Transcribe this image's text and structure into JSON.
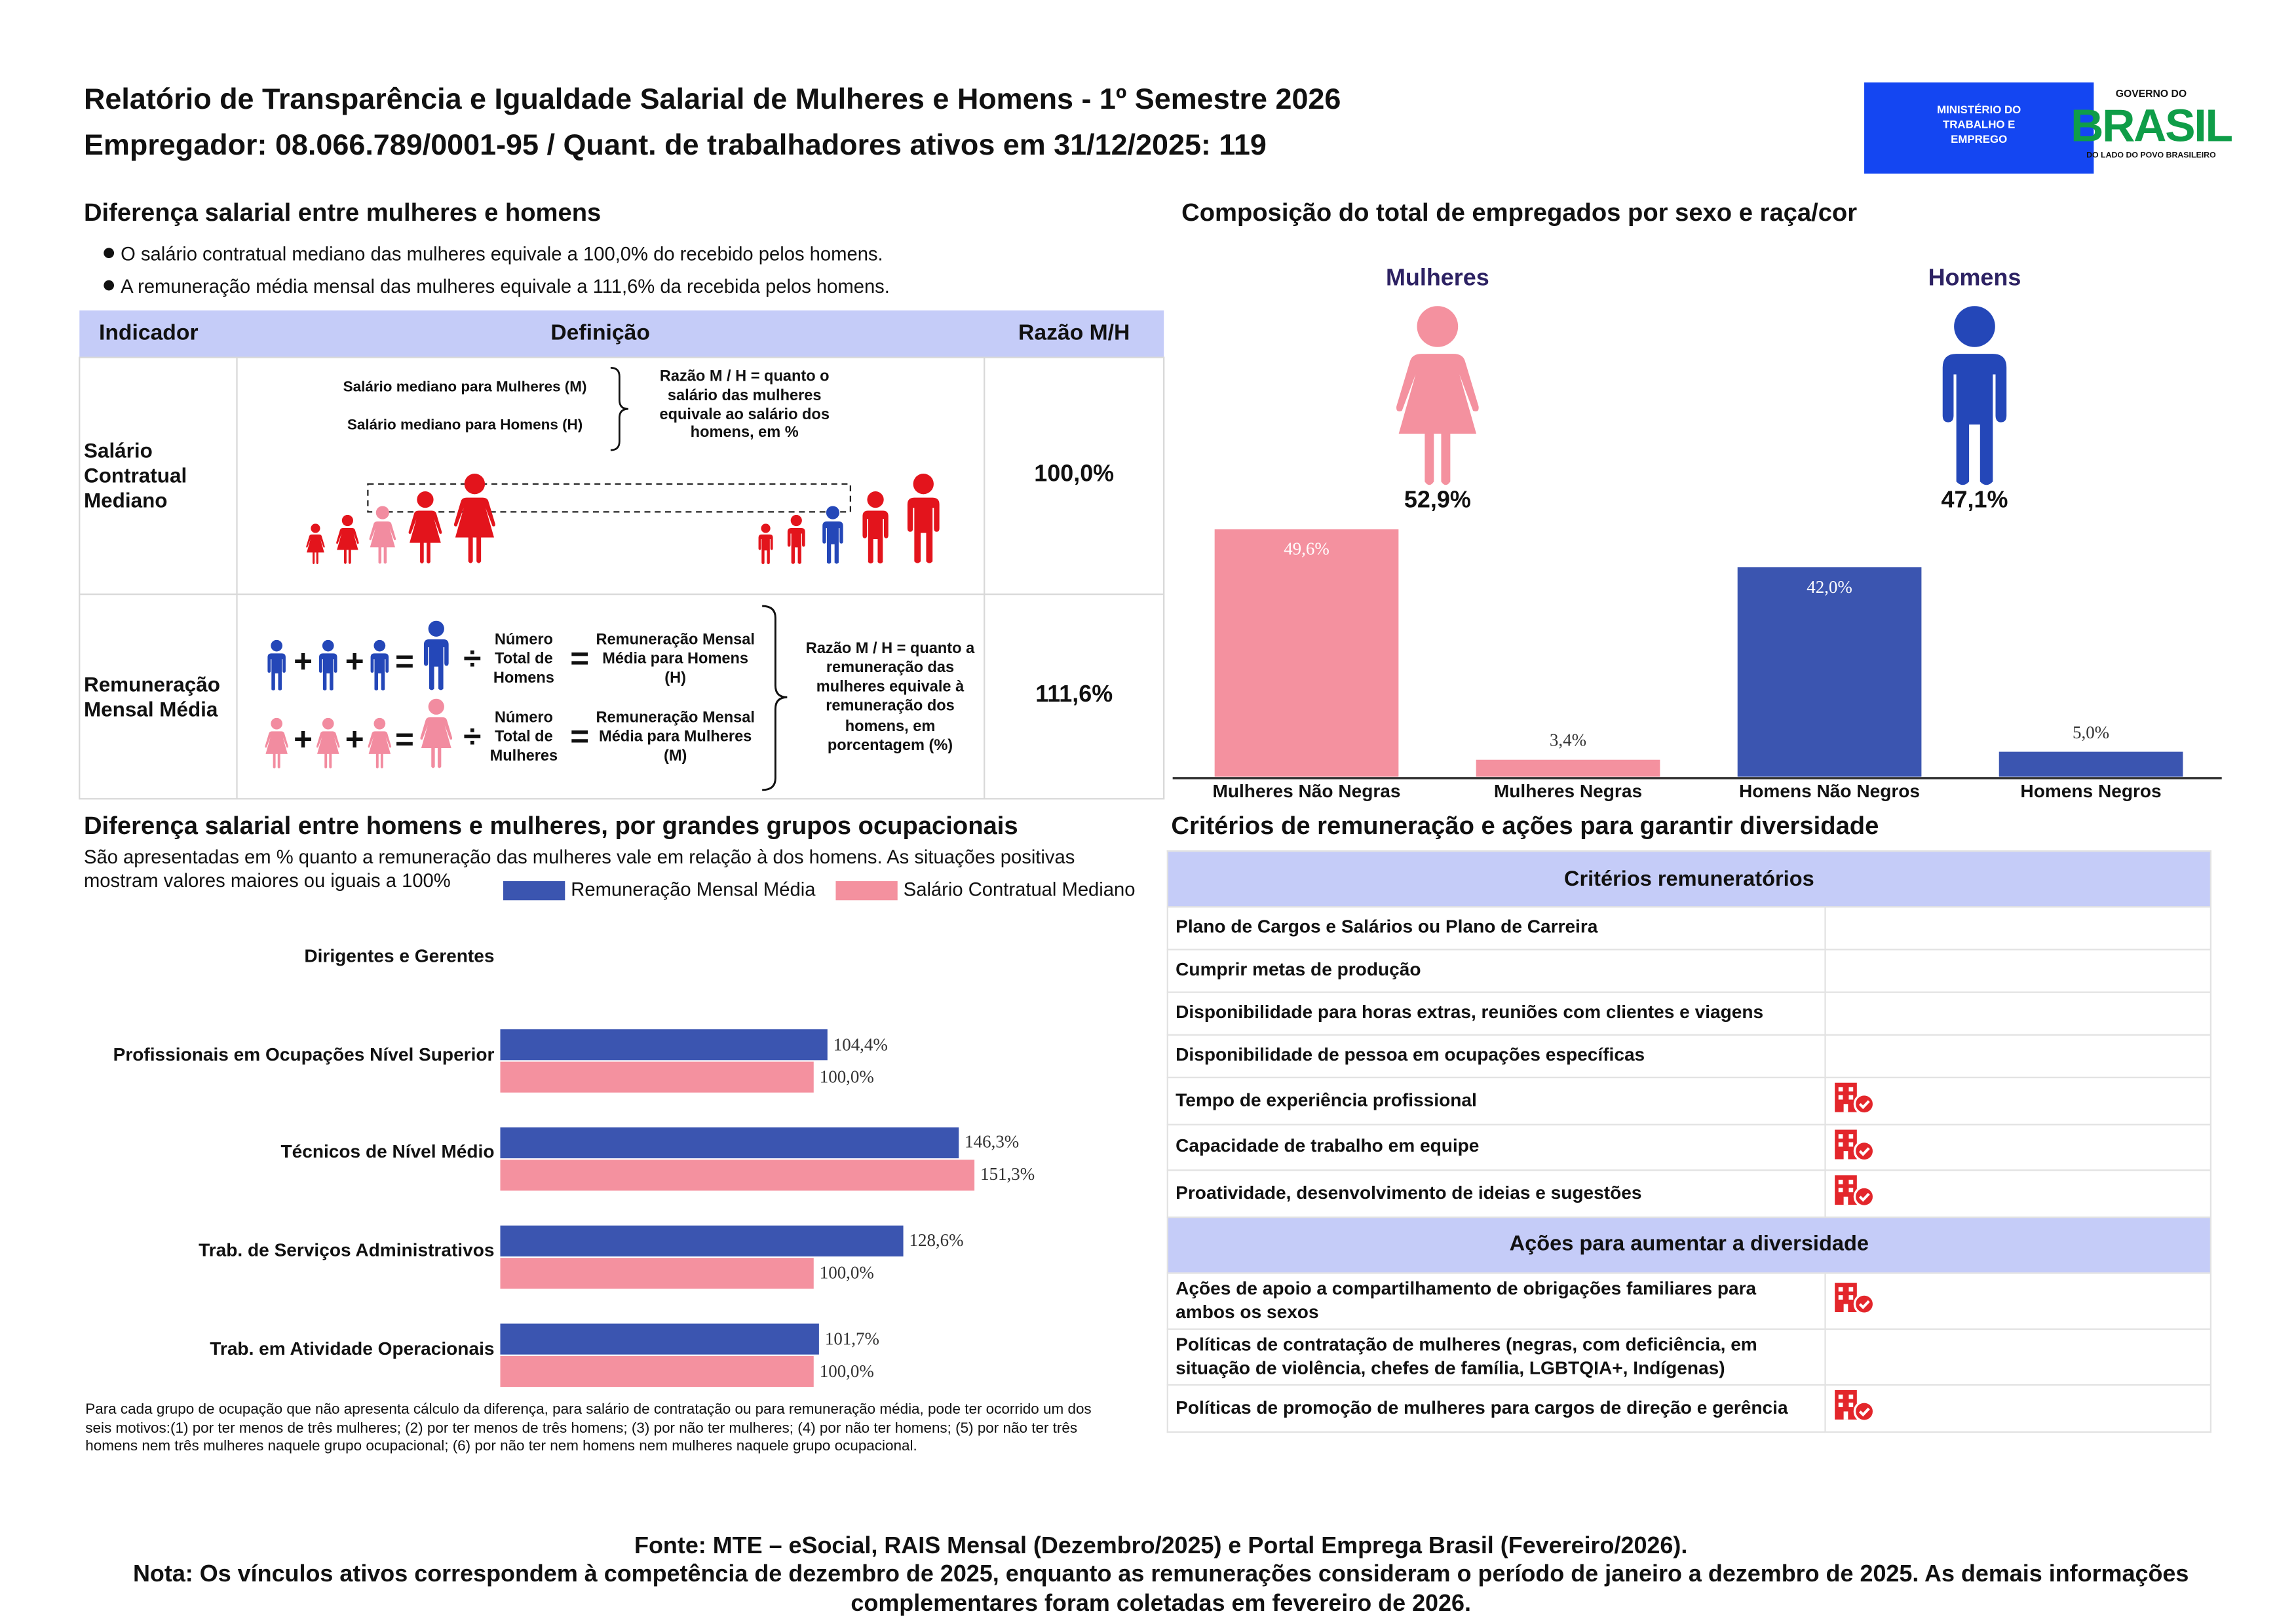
{
  "header": {
    "title": "Relatório de Transparência e Igualdade Salarial de Mulheres e Homens - 1º Semestre 2026",
    "subtitle": "Empregador: 08.066.789/0001-95 / Quant. de trabalhadores ativos em 31/12/2025: 119",
    "ministry_logo": "MINISTÉRIO DO TRABALHO E EMPREGO",
    "government_logo": {
      "top": "GOVERNO DO",
      "brand": "BRASIL",
      "bottom": "DO LADO DO POVO BRASILEIRO"
    }
  },
  "pay_gap": {
    "title": "Diferença salarial entre mulheres e homens",
    "bullets": [
      "O salário contratual mediano das mulheres equivale a 100,0% do recebido pelos homens.",
      "A remuneração média mensal das mulheres equivale a 111,6% da recebida pelos homens."
    ],
    "table": {
      "headers": [
        "Indicador",
        "Definição",
        "Razão M/H"
      ],
      "symbols": {
        "plus": "+",
        "equals": "=",
        "divide": "÷"
      },
      "rows": [
        {
          "indicator": "Salário Contratual Mediano",
          "definition": {
            "women": "Salário mediano para Mulheres (M)",
            "men": "Salário mediano para Homens (H)",
            "ratio_note": "Razão M / H = quanto o salário das mulheres equivale ao salário dos homens, em %"
          },
          "ratio": "100,0%"
        },
        {
          "indicator": "Remuneração Mensal Média",
          "definition": {
            "men_count": "Número Total de Homens",
            "men_result": "Remuneração Mensal Média para Homens (H)",
            "women_count": "Número Total de Mulheres",
            "women_result": "Remuneração Mensal Média para Mulheres (M)",
            "ratio_note": "Razão M / H = quanto a remuneração das mulheres equivale à remuneração dos homens, em porcentagem (%)"
          },
          "ratio": "111,6%"
        }
      ]
    }
  },
  "chart_data": [
    {
      "type": "bar",
      "title": "Composição do total de empregados por sexo e raça/cor",
      "groups": [
        {
          "name": "Mulheres",
          "share": "52,9%",
          "color": "#f4919f"
        },
        {
          "name": "Homens",
          "share": "47,1%",
          "color": "#2447b8"
        }
      ],
      "categories": [
        "Mulheres Não Negras",
        "Mulheres Negras",
        "Homens Não Negros",
        "Homens Negros"
      ],
      "values": [
        49.6,
        3.4,
        42.0,
        5.0
      ],
      "value_labels": [
        "49,6%",
        "3,4%",
        "42,0%",
        "5,0%"
      ],
      "colors": [
        "#f4919f",
        "#f4919f",
        "#3b55b0",
        "#3b55b0"
      ]
    },
    {
      "type": "hbar",
      "title": "Diferença salarial entre homens e mulheres, por grandes grupos ocupacionais",
      "subtitle": "São apresentadas em % quanto a remuneração das mulheres vale em relação à dos homens. As situações positivas mostram valores maiores ou iguais a 100%",
      "categories": [
        "Dirigentes e Gerentes",
        "Profissionais em Ocupações Nível Superior",
        "Técnicos de Nível Médio",
        "Trab. de Serviços Administrativos",
        "Trab. em Atividade Operacionais"
      ],
      "series": [
        {
          "name": "Remuneração Mensal Média",
          "color": "#3b55b0",
          "values": [
            null,
            104.4,
            146.3,
            128.6,
            101.7
          ],
          "value_labels": [
            null,
            "104,4%",
            "146,3%",
            "128,6%",
            "101,7%"
          ]
        },
        {
          "name": "Salário Contratual Mediano",
          "color": "#f4919f",
          "values": [
            null,
            100.0,
            151.3,
            100.0,
            100.0
          ],
          "value_labels": [
            null,
            "100,0%",
            "151,3%",
            "100,0%",
            "100,0%"
          ]
        }
      ],
      "footnote": "Para cada grupo de ocupação que não apresenta cálculo da diferença, para salário de contratação ou para remuneração média, pode ter ocorrido um dos seis motivos:(1) por ter menos de três mulheres; (2) por ter menos de três homens; (3) por não ter mulheres; (4) por não ter homens; (5) por não ter três homens nem três mulheres naquele grupo ocupacional; (6) por não ter nem homens nem mulheres naquele grupo ocupacional."
    }
  ],
  "criteria": {
    "title": "Critérios de remuneração e ações para garantir diversidade",
    "sections": [
      {
        "heading": "Critérios remuneratórios",
        "rows": [
          {
            "text": "Plano de Cargos e Salários ou Plano de Carreira",
            "marked": false
          },
          {
            "text": "Cumprir metas de produção",
            "marked": false
          },
          {
            "text": "Disponibilidade para horas extras, reuniões com clientes e viagens",
            "marked": false
          },
          {
            "text": "Disponibilidade de pessoa em ocupações específicas",
            "marked": false
          },
          {
            "text": "Tempo de experiência profissional",
            "marked": true
          },
          {
            "text": "Capacidade de trabalho em equipe",
            "marked": true
          },
          {
            "text": "Proatividade, desenvolvimento de ideias e sugestões",
            "marked": true
          }
        ]
      },
      {
        "heading": "Ações para aumentar a diversidade",
        "rows": [
          {
            "text": "Ações de apoio a compartilhamento de obrigações familiares para ambos os sexos",
            "marked": true
          },
          {
            "text": "Políticas de contratação de mulheres (negras, com deficiência, em situação de violência, chefes de família, LGBTQIA+, Indígenas)",
            "marked": false
          },
          {
            "text": "Políticas de promoção de mulheres para cargos de direção e gerência",
            "marked": true
          }
        ]
      }
    ]
  },
  "footer": {
    "source": "Fonte: MTE – eSocial, RAIS Mensal (Dezembro/2025) e Portal Emprega Brasil (Fevereiro/2026).",
    "note": "Nota: Os vínculos ativos correspondem à competência de dezembro de 2025, enquanto as remunerações consideram o período de janeiro a dezembro de 2025. As demais informações complementares foram coletadas em fevereiro de 2026."
  }
}
